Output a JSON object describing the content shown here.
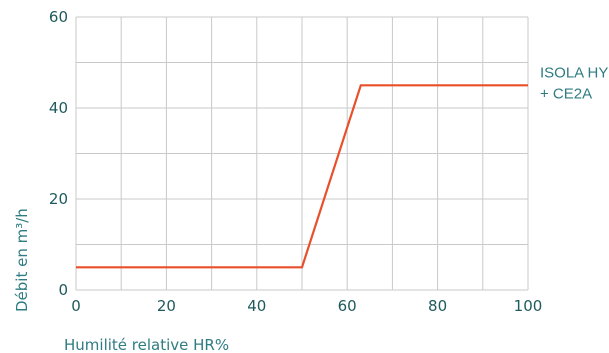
{
  "chart_data": {
    "type": "line",
    "title": "",
    "xlabel": "Humilité relative HR%",
    "ylabel": "Débit en m³/h",
    "xlim": [
      0,
      100
    ],
    "ylim": [
      0,
      60
    ],
    "x_ticks": [
      0,
      20,
      40,
      60,
      80,
      100
    ],
    "y_ticks": [
      0,
      20,
      40,
      60
    ],
    "grid": true,
    "series": [
      {
        "name_lines": [
          "ISOLA HY",
          "+ CE2A"
        ],
        "color": "#e8502c",
        "x": [
          0,
          50,
          63,
          100
        ],
        "y": [
          5,
          5,
          45,
          45
        ]
      }
    ]
  }
}
